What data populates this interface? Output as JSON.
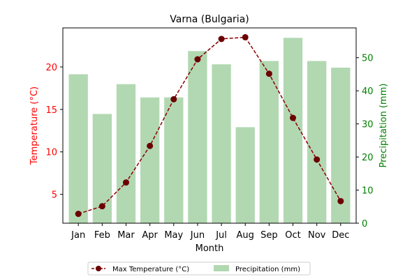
{
  "chart_data": {
    "type": "bar",
    "title": "Varna (Bulgaria)",
    "xlabel": "Month",
    "categories": [
      "Jan",
      "Feb",
      "Mar",
      "Apr",
      "May",
      "Jun",
      "Jul",
      "Aug",
      "Sep",
      "Oct",
      "Nov",
      "Dec"
    ],
    "ylabel_left": "Temperature (°C)",
    "ylabel_right": "Precipitation (mm)",
    "ylim_left": [
      1.6,
      24.6
    ],
    "ylim_right": [
      0,
      59
    ],
    "yticks_left": [
      5,
      10,
      15,
      20
    ],
    "yticks_right": [
      0,
      10,
      20,
      30,
      40,
      50
    ],
    "grid": false,
    "legend_position": "bottom-center",
    "series": [
      {
        "name": "Max Temperature (°C)",
        "kind": "line",
        "axis": "left",
        "color": "#8b0000",
        "values": [
          2.7,
          3.6,
          6.4,
          10.7,
          16.2,
          20.9,
          23.3,
          23.5,
          19.2,
          14.0,
          9.1,
          4.2
        ]
      },
      {
        "name": "Precipitation (mm)",
        "kind": "bar",
        "axis": "right",
        "color": "#b2d8b2",
        "values": [
          45,
          33,
          42,
          38,
          38,
          52,
          48,
          29,
          49,
          56,
          49,
          47
        ]
      }
    ],
    "colors": {
      "left_axis": "#ff0000",
      "right_axis": "#008000"
    }
  }
}
